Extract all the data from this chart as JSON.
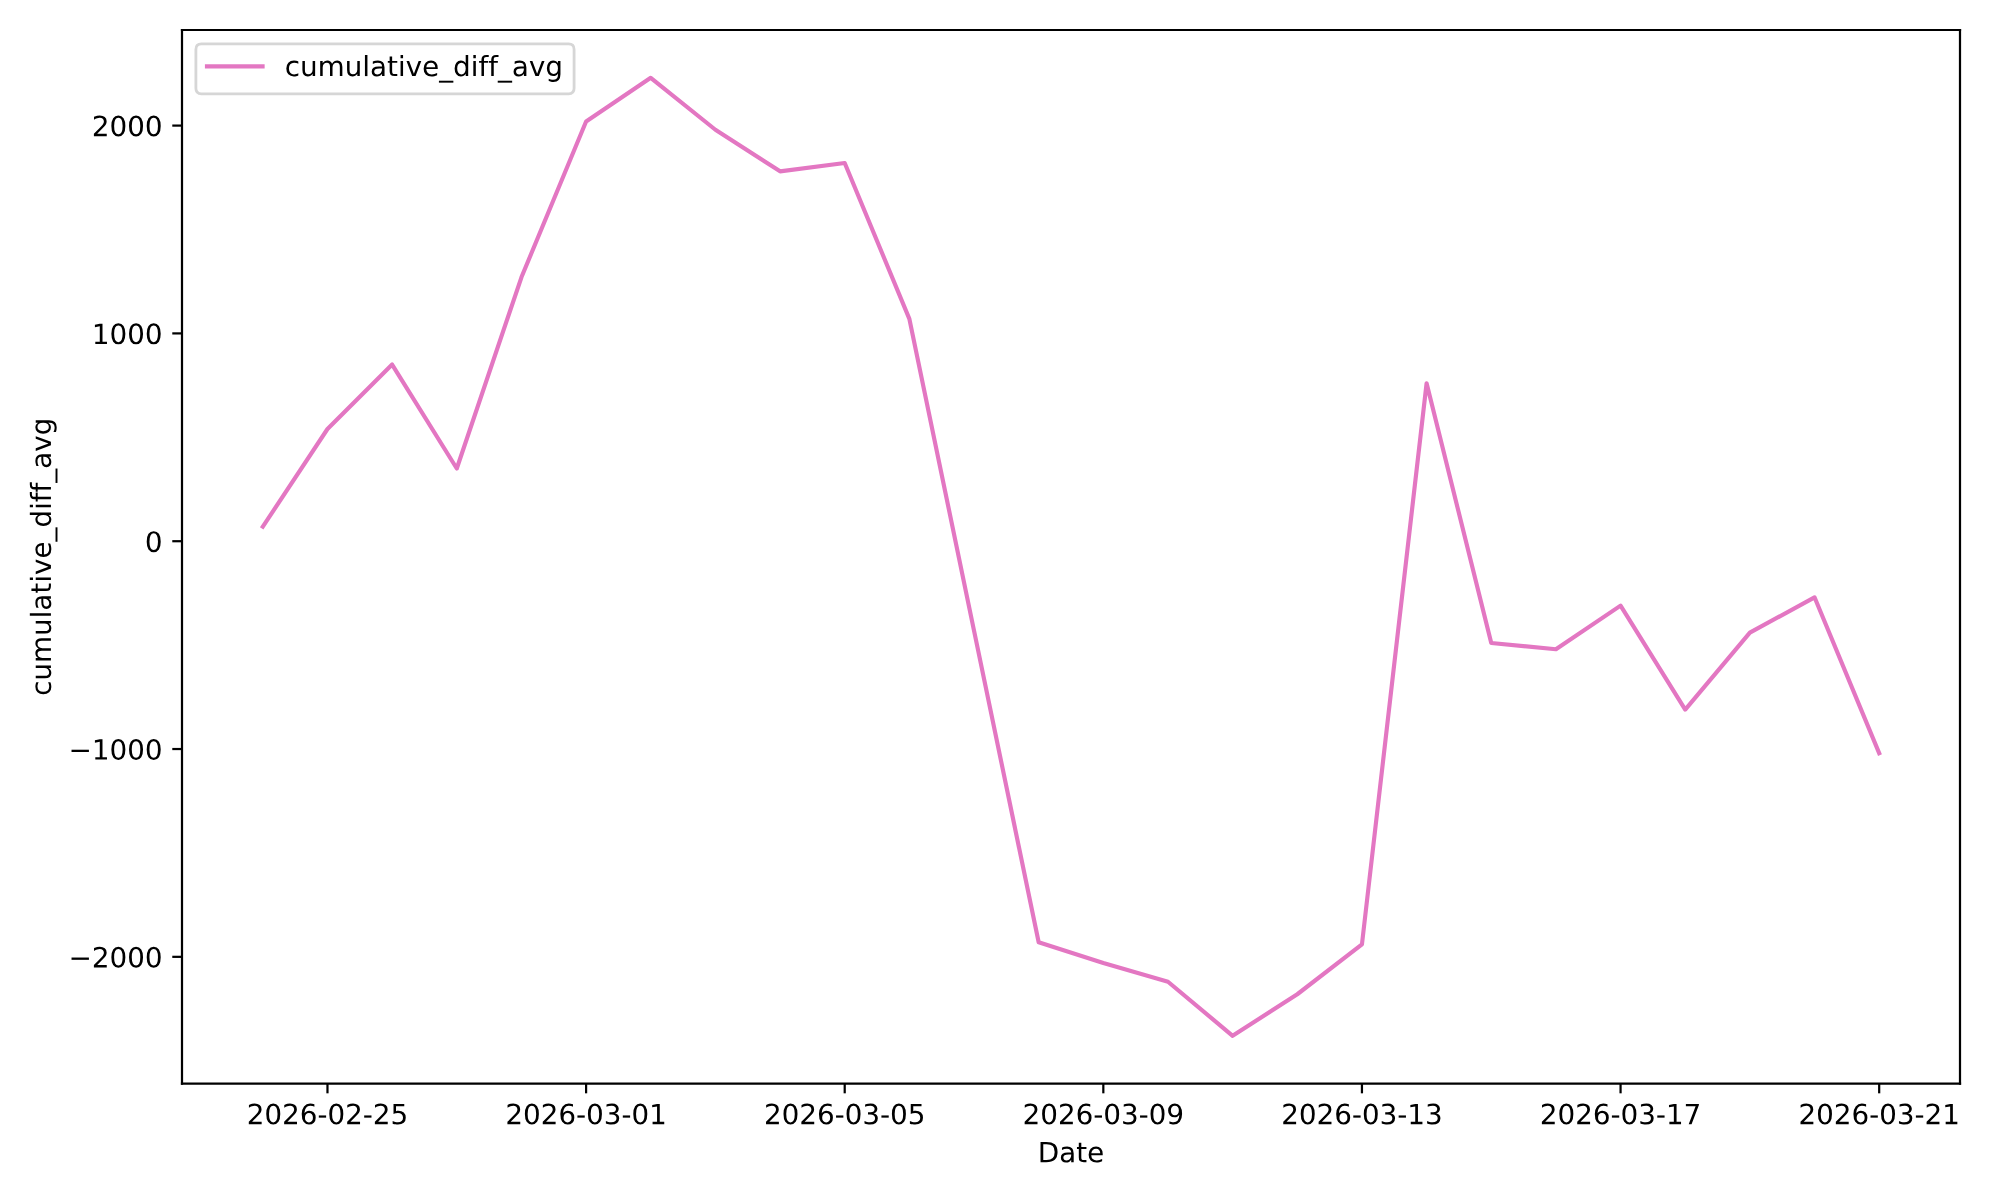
{
  "chart_data": {
    "type": "line",
    "xlabel": "Date",
    "ylabel": "cumulative_diff_avg",
    "x": [
      "2026-02-24",
      "2026-02-25",
      "2026-02-26",
      "2026-02-27",
      "2026-02-28",
      "2026-03-01",
      "2026-03-02",
      "2026-03-03",
      "2026-03-04",
      "2026-03-05",
      "2026-03-06",
      "2026-03-07",
      "2026-03-08",
      "2026-03-09",
      "2026-03-10",
      "2026-03-11",
      "2026-03-12",
      "2026-03-13",
      "2026-03-14",
      "2026-03-15",
      "2026-03-16",
      "2026-03-17",
      "2026-03-18",
      "2026-03-19",
      "2026-03-20",
      "2026-03-21"
    ],
    "series": [
      {
        "name": "cumulative_diff_avg",
        "color": "#e377c2",
        "values": [
          70,
          540,
          850,
          350,
          1270,
          2020,
          2230,
          1980,
          1780,
          1820,
          1070,
          -430,
          -1930,
          -2030,
          -2120,
          -2380,
          -2180,
          -1940,
          760,
          -490,
          -520,
          -310,
          -810,
          -440,
          -270,
          -1020
        ]
      }
    ],
    "xlim": [
      "2026-02-22T18:00",
      "2026-03-22T06:00"
    ],
    "xticks": [
      "2026-02-25",
      "2026-03-01",
      "2026-03-05",
      "2026-03-09",
      "2026-03-13",
      "2026-03-17",
      "2026-03-21"
    ],
    "ylim": [
      -2610,
      2460
    ],
    "yticks": [
      {
        "value": -2000,
        "label": "−2000"
      },
      {
        "value": -1000,
        "label": "−1000"
      },
      0,
      1000,
      2000
    ],
    "legend": "top left",
    "grid": false,
    "marker": "none",
    "line_style": "solid"
  }
}
